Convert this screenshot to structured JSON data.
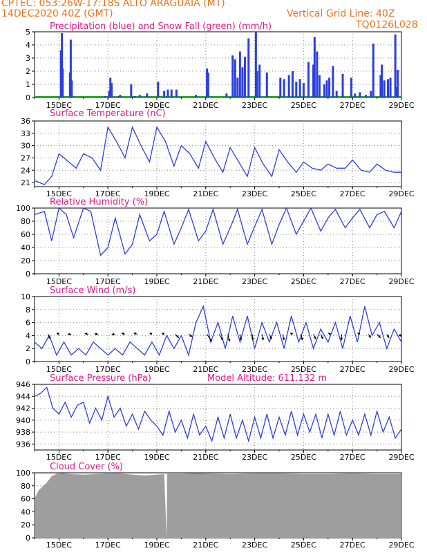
{
  "header": {
    "line1": "CPTEC:   053:26W-17:18S   ALTO ARAGUAIA (MT)",
    "line2": "14DEC2020 40Z (GMT)",
    "grid_note": "Vertical Grid Line: 40Z",
    "code": "TQ0126L028"
  },
  "colors": {
    "header": "#e8741c",
    "titles": "#d81b8c",
    "line": "#2b3ee0",
    "precip": "#2b3ee0",
    "snow": "#22a822",
    "cloud": "#9e9e9e"
  },
  "date_ticks": [
    "15DEC",
    "17DEC",
    "19DEC",
    "21DEC",
    "23DEC",
    "25DEC",
    "27DEC",
    "29DEC"
  ],
  "chart_data": [
    {
      "id": "precip",
      "type": "bar",
      "title": "Precipitation (blue) and Snow Fall (green) (mm/h)",
      "ylim": [
        0,
        5
      ],
      "yticks": [
        0,
        1,
        2,
        3,
        4,
        5
      ],
      "x": [
        15.08,
        15.12,
        15.15,
        15.45,
        15.48,
        15.52,
        16.9,
        17.05,
        17.1,
        17.15,
        17.45,
        17.5,
        17.95,
        18.1,
        18.3,
        18.6,
        19.05,
        19.3,
        19.45,
        19.6,
        19.8,
        20.6,
        21.05,
        21.1,
        21.85,
        22.1,
        22.2,
        22.3,
        22.4,
        22.5,
        22.6,
        22.75,
        23.05,
        23.1,
        23.2,
        23.5,
        24.05,
        24.2,
        24.4,
        24.55,
        24.7,
        24.85,
        25.0,
        25.2,
        25.4,
        25.45,
        25.55,
        25.65,
        25.85,
        25.95,
        26.05,
        26.2,
        26.35,
        26.6,
        26.95,
        27.1,
        27.3,
        27.55,
        27.75,
        27.85,
        28.15,
        28.2,
        28.3,
        28.45,
        28.55,
        28.75,
        28.8,
        28.85
      ],
      "values": [
        3.6,
        4.9,
        2.2,
        1.9,
        4.4,
        1.3,
        0.1,
        0.5,
        1.5,
        1.1,
        0.1,
        0.2,
        1.0,
        0.1,
        0.2,
        0.3,
        1.2,
        0.5,
        0.6,
        0.6,
        0.6,
        0.2,
        2.2,
        1.9,
        0.3,
        3.2,
        2.9,
        1.5,
        3.5,
        2.3,
        3.1,
        4.5,
        5.0,
        2.0,
        2.5,
        1.9,
        1.5,
        1.4,
        1.7,
        2.0,
        1.2,
        1.4,
        1.1,
        2.7,
        2.5,
        4.6,
        3.5,
        1.7,
        1.0,
        1.3,
        1.5,
        2.4,
        0.5,
        1.8,
        1.5,
        0.3,
        0.4,
        0.2,
        0.5,
        4.1,
        1.7,
        2.5,
        1.3,
        1.4,
        1.5,
        4.8,
        0.8,
        2.1
      ],
      "snow": 0
    },
    {
      "id": "temp",
      "type": "line",
      "title": "Surface Temperature (nC)",
      "ylim": [
        20,
        36
      ],
      "yticks": [
        21,
        24,
        27,
        30,
        33,
        36
      ],
      "x": [
        14.0,
        14.4,
        14.7,
        15.0,
        15.3,
        15.7,
        16.0,
        16.35,
        16.7,
        17.0,
        17.35,
        17.7,
        18.0,
        18.35,
        18.7,
        19.0,
        19.35,
        19.7,
        20.0,
        20.35,
        20.7,
        21.0,
        21.35,
        21.7,
        22.0,
        22.35,
        22.7,
        23.0,
        23.35,
        23.7,
        24.0,
        24.35,
        24.7,
        25.0,
        25.35,
        25.7,
        26.0,
        26.35,
        26.7,
        27.0,
        27.35,
        27.7,
        28.0,
        28.35,
        28.7,
        29.0
      ],
      "values": [
        21.5,
        20.5,
        22.5,
        28.0,
        26.5,
        24.5,
        28.0,
        27.0,
        24.0,
        34.5,
        31.0,
        27.0,
        34.5,
        30.0,
        26.0,
        34.5,
        31.0,
        25.0,
        30.0,
        28.0,
        24.5,
        31.0,
        27.0,
        23.5,
        29.5,
        26.0,
        22.5,
        29.5,
        25.5,
        22.5,
        29.0,
        26.0,
        23.5,
        26.0,
        24.5,
        24.0,
        25.5,
        24.5,
        24.5,
        26.5,
        24.0,
        23.5,
        25.5,
        24.0,
        23.5,
        23.5
      ]
    },
    {
      "id": "rh",
      "type": "line",
      "title": "Relative Humidity (%)",
      "ylim": [
        0,
        100
      ],
      "yticks": [
        0,
        20,
        40,
        60,
        80,
        100
      ],
      "x": [
        14.0,
        14.4,
        14.7,
        15.0,
        15.3,
        15.6,
        16.0,
        16.3,
        16.7,
        17.0,
        17.3,
        17.7,
        18.0,
        18.3,
        18.7,
        19.0,
        19.3,
        19.7,
        20.0,
        20.3,
        20.7,
        21.0,
        21.3,
        21.7,
        22.0,
        22.3,
        22.7,
        23.0,
        23.3,
        23.7,
        24.0,
        24.3,
        24.7,
        25.0,
        25.3,
        25.7,
        26.0,
        26.3,
        26.7,
        27.0,
        27.3,
        27.7,
        28.0,
        28.3,
        28.7,
        29.0
      ],
      "values": [
        90,
        95,
        50,
        100,
        90,
        55,
        100,
        95,
        28,
        40,
        85,
        30,
        45,
        90,
        50,
        60,
        95,
        45,
        70,
        98,
        50,
        65,
        98,
        45,
        70,
        98,
        45,
        72,
        98,
        45,
        75,
        100,
        60,
        80,
        100,
        65,
        85,
        98,
        70,
        85,
        98,
        70,
        90,
        95,
        70,
        95
      ]
    },
    {
      "id": "wind",
      "type": "line",
      "title": "Surface Wind (m/s)",
      "ylim": [
        0,
        10
      ],
      "yticks": [
        0,
        2,
        4,
        6,
        8,
        10
      ],
      "x": [
        14.0,
        14.3,
        14.6,
        14.9,
        15.2,
        15.5,
        15.8,
        16.1,
        16.4,
        16.7,
        17.0,
        17.3,
        17.6,
        17.9,
        18.2,
        18.5,
        18.8,
        19.1,
        19.4,
        19.7,
        20.0,
        20.3,
        20.6,
        20.9,
        21.2,
        21.5,
        21.8,
        22.1,
        22.4,
        22.7,
        23.0,
        23.3,
        23.6,
        23.9,
        24.2,
        24.5,
        24.8,
        25.1,
        25.4,
        25.7,
        26.0,
        26.3,
        26.6,
        26.9,
        27.2,
        27.5,
        27.8,
        28.1,
        28.4,
        28.7,
        29.0
      ],
      "values": [
        3,
        2,
        4,
        1,
        3,
        1,
        2,
        1,
        3,
        2,
        1,
        2,
        1,
        3,
        2,
        1,
        3,
        1,
        4,
        2,
        4,
        1,
        6,
        8.5,
        3,
        6,
        2,
        7,
        3,
        7,
        2,
        6,
        3,
        6,
        2,
        7,
        3,
        6,
        2,
        5,
        3,
        6,
        2,
        7,
        3,
        8.5,
        4,
        6,
        2,
        5,
        3
      ],
      "arrows": [
        {
          "x": 14.55,
          "u": 1,
          "v": -2
        },
        {
          "x": 15.0,
          "u": -1,
          "v": 0.5
        },
        {
          "x": 15.5,
          "u": -1.5,
          "v": 0
        },
        {
          "x": 16.2,
          "u": -1.5,
          "v": 0.3
        },
        {
          "x": 16.6,
          "u": -1.5,
          "v": 0.2
        },
        {
          "x": 17.3,
          "u": -1.5,
          "v": 0
        },
        {
          "x": 17.7,
          "u": -1.5,
          "v": 0.5
        },
        {
          "x": 18.2,
          "u": -1.5,
          "v": 0.5
        },
        {
          "x": 18.8,
          "u": -1,
          "v": 0.5
        },
        {
          "x": 19.3,
          "u": -1,
          "v": 0.5
        },
        {
          "x": 19.75,
          "u": 1.5,
          "v": -1.5
        },
        {
          "x": 20.3,
          "u": 1.5,
          "v": -1
        },
        {
          "x": 21.05,
          "u": 2,
          "v": -3
        },
        {
          "x": 21.55,
          "u": 1.5,
          "v": -2.5
        },
        {
          "x": 21.9,
          "u": 0.8,
          "v": -3
        },
        {
          "x": 22.4,
          "u": 0.5,
          "v": -2.5
        },
        {
          "x": 22.9,
          "u": 0.3,
          "v": -2.5
        },
        {
          "x": 23.3,
          "u": 0.5,
          "v": -2.5
        },
        {
          "x": 23.6,
          "u": 1,
          "v": -2
        },
        {
          "x": 24.15,
          "u": 0.5,
          "v": -2.5
        },
        {
          "x": 24.55,
          "u": -1,
          "v": 0.5
        },
        {
          "x": 24.9,
          "u": 0.5,
          "v": -2.5
        },
        {
          "x": 25.4,
          "u": 1,
          "v": -2
        },
        {
          "x": 25.7,
          "u": 1,
          "v": -2
        },
        {
          "x": 26.1,
          "u": -1,
          "v": 0.5
        },
        {
          "x": 26.55,
          "u": 0,
          "v": -2.5
        },
        {
          "x": 27.3,
          "u": -1,
          "v": 0.5
        },
        {
          "x": 27.65,
          "u": 1,
          "v": -1.5
        },
        {
          "x": 28.0,
          "u": 1.5,
          "v": -1.5
        },
        {
          "x": 28.4,
          "u": 1,
          "v": -1.5
        },
        {
          "x": 28.9,
          "u": 1,
          "v": -1
        }
      ]
    },
    {
      "id": "pres",
      "type": "line",
      "title": "Surface Pressure (hPa)",
      "model_altitude": "Model Altitude: 611.132 m",
      "ylim": [
        935,
        946
      ],
      "yticks": [
        936,
        938,
        940,
        942,
        944,
        946
      ],
      "x": [
        14.0,
        14.25,
        14.5,
        14.75,
        15.0,
        15.25,
        15.5,
        15.75,
        16.0,
        16.25,
        16.5,
        16.75,
        17.0,
        17.25,
        17.5,
        17.75,
        18.0,
        18.25,
        18.5,
        18.75,
        19.0,
        19.25,
        19.5,
        19.75,
        20.0,
        20.25,
        20.5,
        20.75,
        21.0,
        21.25,
        21.5,
        21.75,
        22.0,
        22.25,
        22.5,
        22.75,
        23.0,
        23.25,
        23.5,
        23.75,
        24.0,
        24.25,
        24.5,
        24.75,
        25.0,
        25.25,
        25.5,
        25.75,
        26.0,
        26.25,
        26.5,
        26.75,
        27.0,
        27.25,
        27.5,
        27.75,
        28.0,
        28.25,
        28.5,
        28.75,
        29.0
      ],
      "values": [
        944,
        944.5,
        945.5,
        942,
        941,
        943,
        940.5,
        942.5,
        943,
        939.5,
        942,
        940,
        944,
        940.5,
        942,
        939,
        941,
        938.5,
        941.5,
        940,
        939,
        937.5,
        941.5,
        938,
        940,
        937,
        941,
        937.5,
        939,
        936.5,
        940.5,
        937,
        941,
        937,
        940,
        936.5,
        940.5,
        937,
        941,
        937,
        940.5,
        937.5,
        941.5,
        937.5,
        941,
        938,
        941,
        937,
        941,
        937.5,
        941.5,
        937.5,
        940,
        937.5,
        941,
        937.5,
        941.5,
        938,
        940.5,
        937,
        938.5
      ]
    },
    {
      "id": "cloud",
      "type": "area",
      "title": "Cloud Cover (%)",
      "ylim": [
        0,
        100
      ],
      "yticks": [
        0,
        20,
        40,
        60,
        80,
        100
      ],
      "x": [
        14.0,
        14.15,
        14.3,
        14.5,
        14.7,
        15.0,
        15.5,
        16.0,
        16.5,
        17.0,
        17.5,
        18.0,
        18.5,
        19.0,
        19.3,
        19.4,
        19.42,
        19.5,
        20.0,
        21.0,
        22.0,
        23.0,
        24.0,
        25.0,
        26.0,
        27.0,
        28.0,
        29.0
      ],
      "values": [
        60,
        72,
        78,
        85,
        95,
        100,
        98,
        97,
        98,
        99,
        99,
        97,
        96,
        97,
        98,
        0,
        100,
        100,
        100,
        99,
        98,
        99,
        99,
        98,
        98,
        99,
        98,
        98
      ]
    }
  ]
}
